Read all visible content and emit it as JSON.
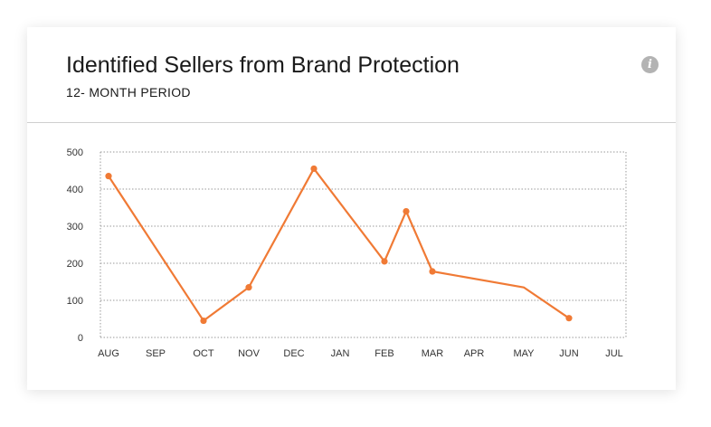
{
  "card": {
    "title": "Identified Sellers from Brand Protection",
    "subtitle": "12- MONTH PERIOD",
    "info_icon": "info-icon"
  },
  "chart_data": {
    "type": "line",
    "title": "",
    "xlabel": "",
    "ylabel": "",
    "categories": [
      "AUG",
      "SEP",
      "OCT",
      "NOV",
      "DEC",
      "JAN",
      "FEB",
      "MAR",
      "APR",
      "MAY",
      "JUN",
      "JUL"
    ],
    "yticks": [
      0,
      100,
      200,
      300,
      400,
      500
    ],
    "ylim": [
      0,
      500
    ],
    "grid": true,
    "series": [
      {
        "color": "#f07a35",
        "points": [
          {
            "x": "AUG",
            "y": 435,
            "marker": true
          },
          {
            "x": "OCT",
            "y": 45,
            "marker": true
          },
          {
            "x": "NOV",
            "y": 135,
            "marker": true
          },
          {
            "x": "DEC-JAN",
            "y": 455,
            "marker": true
          },
          {
            "x": "FEB",
            "y": 205,
            "marker": true
          },
          {
            "x": "FEB-MAR",
            "y": 340,
            "marker": true
          },
          {
            "x": "MAR",
            "y": 178,
            "marker": true
          },
          {
            "x": "MAY",
            "y": 135,
            "marker": false
          },
          {
            "x": "JUN",
            "y": 52,
            "marker": true
          }
        ]
      }
    ]
  }
}
